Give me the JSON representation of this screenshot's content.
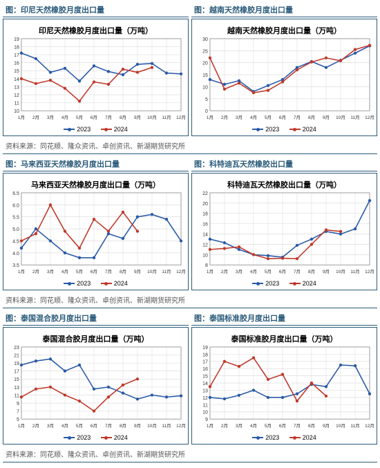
{
  "colors": {
    "s2023": "#2a5aa8",
    "s2024": "#c0392b",
    "grid": "#d8d8d8",
    "axis": "#888",
    "border": "#2a5a7a"
  },
  "legend_labels": {
    "a": "2023",
    "b": "2024"
  },
  "source_text": "资料来源：同花顺、隆众资讯、卓创资讯、新湖期货研究所",
  "months": [
    "1月",
    "2月",
    "3月",
    "4月",
    "5月",
    "6月",
    "7月",
    "8月",
    "9月",
    "10月",
    "11月",
    "12月"
  ],
  "charts": [
    {
      "header": "图：印尼天然橡胶月度出口量",
      "title": "印尼天然橡胶月度出口量（万吨）",
      "ymin": 10,
      "ymax": 19,
      "ystep": 1,
      "s2023": [
        17.2,
        16.5,
        14.8,
        15.3,
        13.7,
        15.6,
        14.9,
        14.5,
        15.8,
        15.9,
        14.7,
        14.6
      ],
      "s2024": [
        14.0,
        13.4,
        13.8,
        12.8,
        11.2,
        13.6,
        13.3,
        15.2,
        14.8,
        15.4,
        null,
        null
      ]
    },
    {
      "header": "图：越南天然橡胶月度出口量",
      "title": "越南天然橡胶月度出口量（万吨）",
      "ymin": 0,
      "ymax": 30,
      "ystep": 5,
      "s2023": [
        13.0,
        11.0,
        12.5,
        8.0,
        10.5,
        13.0,
        18.0,
        20.5,
        18.0,
        21.0,
        24.0,
        27.0
      ],
      "s2024": [
        22.0,
        9.0,
        11.5,
        7.5,
        8.5,
        12.0,
        17.0,
        20.3,
        22.0,
        20.8,
        25.5,
        27.2
      ]
    },
    {
      "header": "图：马来西亚天然橡胶月度出口量",
      "title": "马来西亚天然橡胶月度出口量（万吨）",
      "ymin": 3.5,
      "ymax": 6.5,
      "ystep": 0.5,
      "s2023": [
        4.2,
        5.0,
        4.5,
        4.0,
        3.8,
        3.8,
        4.8,
        4.6,
        5.5,
        5.6,
        5.4,
        4.5
      ],
      "s2024": [
        4.5,
        4.8,
        6.0,
        4.9,
        4.2,
        5.4,
        4.9,
        5.7,
        4.9,
        null,
        null,
        null
      ]
    },
    {
      "header": "图：科特迪瓦天然橡胶出口量",
      "title": "科特迪瓦天然橡胶出口量（万吨）",
      "ymin": 8,
      "ymax": 22,
      "ystep": 2,
      "s2023": [
        13.0,
        12.3,
        11.0,
        10.0,
        9.8,
        9.5,
        11.8,
        13.0,
        14.5,
        14.0,
        15.0,
        20.5
      ],
      "s2024": [
        11.0,
        11.2,
        11.5,
        10.0,
        9.2,
        9.3,
        9.2,
        12.0,
        14.8,
        14.5,
        null,
        null
      ]
    },
    {
      "header": "图：泰国混合胶月度出口量",
      "title": "泰国混合胶月度出口量（万吨）",
      "ymin": 5,
      "ymax": 23,
      "ystep": 2,
      "s2023": [
        18.5,
        19.5,
        20.0,
        17.0,
        18.5,
        12.5,
        13.0,
        11.5,
        10.0,
        11.0,
        10.5,
        10.8
      ],
      "s2024": [
        10.5,
        12.5,
        13.0,
        11.0,
        9.5,
        7.0,
        10.5,
        13.5,
        15.0,
        null,
        null,
        null
      ]
    },
    {
      "header": "图：泰国标准胶月度出口量",
      "title": "泰国标准胶月度出口量（万吨）",
      "ymin": 9,
      "ymax": 19,
      "ystep": 1,
      "s2023": [
        12.0,
        11.8,
        12.3,
        13.0,
        12.0,
        12.0,
        12.5,
        13.8,
        13.5,
        16.5,
        16.4,
        12.5
      ],
      "s2024": [
        13.5,
        17.0,
        16.3,
        17.5,
        14.5,
        15.2,
        11.5,
        14.0,
        12.2,
        null,
        null,
        null
      ]
    }
  ]
}
